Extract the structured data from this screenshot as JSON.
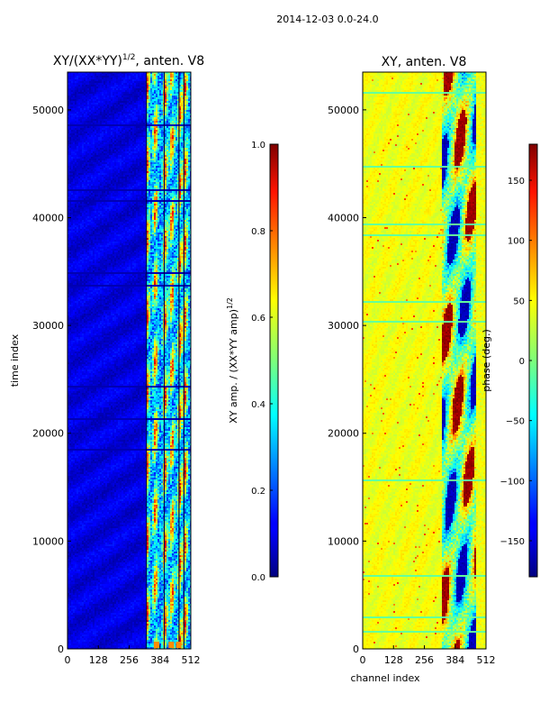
{
  "chart_data": [
    {
      "type": "heatmap",
      "suptitle": "2014-12-03 0.0-24.0",
      "title_base": "XY/(XX*YY)",
      "title_exp": "1/2",
      "title_suffix": ", anten. V8",
      "ylabel": "time index",
      "xlabel": "",
      "xlim": [
        0,
        512
      ],
      "ylim": [
        0,
        53500
      ],
      "x_ticks": [
        0,
        128,
        256,
        384,
        512
      ],
      "y_ticks": [
        0,
        10000,
        20000,
        30000,
        40000,
        50000
      ],
      "colorbar": {
        "label_base": "XY amp. / (XX*YY amp)",
        "label_exp": "1/2",
        "range": [
          0.0,
          1.0
        ],
        "ticks": [
          "0.0",
          "0.2",
          "0.4",
          "0.6",
          "0.8",
          "1.0"
        ],
        "colormap": "jet"
      }
    },
    {
      "type": "heatmap",
      "title": "XY, anten. V8",
      "xlabel": "channel index",
      "ylabel": "",
      "xlim": [
        0,
        512
      ],
      "ylim": [
        0,
        53500
      ],
      "x_ticks": [
        0,
        128,
        256,
        384,
        512
      ],
      "y_ticks": [
        0,
        10000,
        20000,
        30000,
        40000,
        50000
      ],
      "colorbar": {
        "label": "phase (deg.)",
        "range": [
          -180,
          180
        ],
        "ticks": [
          "−150",
          "−100",
          "−50",
          "0",
          "50",
          "100",
          "150"
        ],
        "tick_values": [
          -150,
          -100,
          -50,
          0,
          50,
          100,
          150
        ],
        "colormap": "jet"
      }
    }
  ]
}
